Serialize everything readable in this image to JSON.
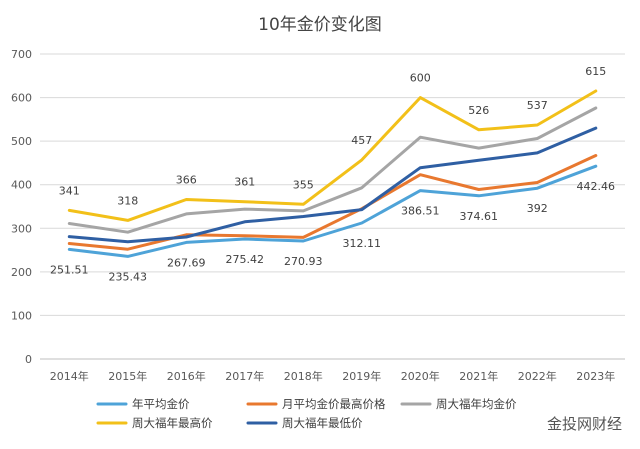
{
  "watermark": "金投网财经",
  "chart_data": {
    "type": "line",
    "title": "10年金价变化图",
    "xlabel": "",
    "ylabel": "",
    "categories": [
      "2014年",
      "2015年",
      "2016年",
      "2017年",
      "2018年",
      "2019年",
      "2020年",
      "2021年",
      "2022年",
      "2023年"
    ],
    "ylim": [
      0,
      700
    ],
    "yticks": [
      0,
      100,
      200,
      300,
      400,
      500,
      600,
      700
    ],
    "grid": true,
    "legend_position": "bottom",
    "series": [
      {
        "name": "年平均金价",
        "color": "#4ea3d8",
        "values": [
          251.51,
          235.43,
          267.69,
          275.42,
          270.93,
          312.11,
          386.51,
          374.61,
          392,
          442.46
        ],
        "labels": [
          "251.51",
          "235.43",
          "267.69",
          "275.42",
          "270.93",
          "312.11",
          "386.51",
          "374.61",
          "392",
          "442.46"
        ]
      },
      {
        "name": "月平均金价最高价格",
        "color": "#e8782f",
        "values": [
          265,
          252,
          285,
          283,
          279,
          345,
          423,
          389,
          405,
          467
        ],
        "labels": []
      },
      {
        "name": "周大福年均金价",
        "color": "#a5a5a5",
        "values": [
          311,
          291,
          333,
          344,
          340,
          393,
          509,
          484,
          506,
          576
        ],
        "labels": []
      },
      {
        "name": "周大福年最高价",
        "color": "#f2c019",
        "values": [
          341,
          318,
          366,
          361,
          355,
          457,
          600,
          526,
          537,
          615
        ],
        "labels": [
          "341",
          "318",
          "366",
          "361",
          "355",
          "457",
          "600",
          "526",
          "537",
          "615"
        ]
      },
      {
        "name": "周大福年最低价",
        "color": "#2f5fa3",
        "values": [
          281,
          269,
          280,
          315,
          327,
          343,
          439,
          456,
          473,
          530
        ],
        "labels": []
      }
    ]
  }
}
